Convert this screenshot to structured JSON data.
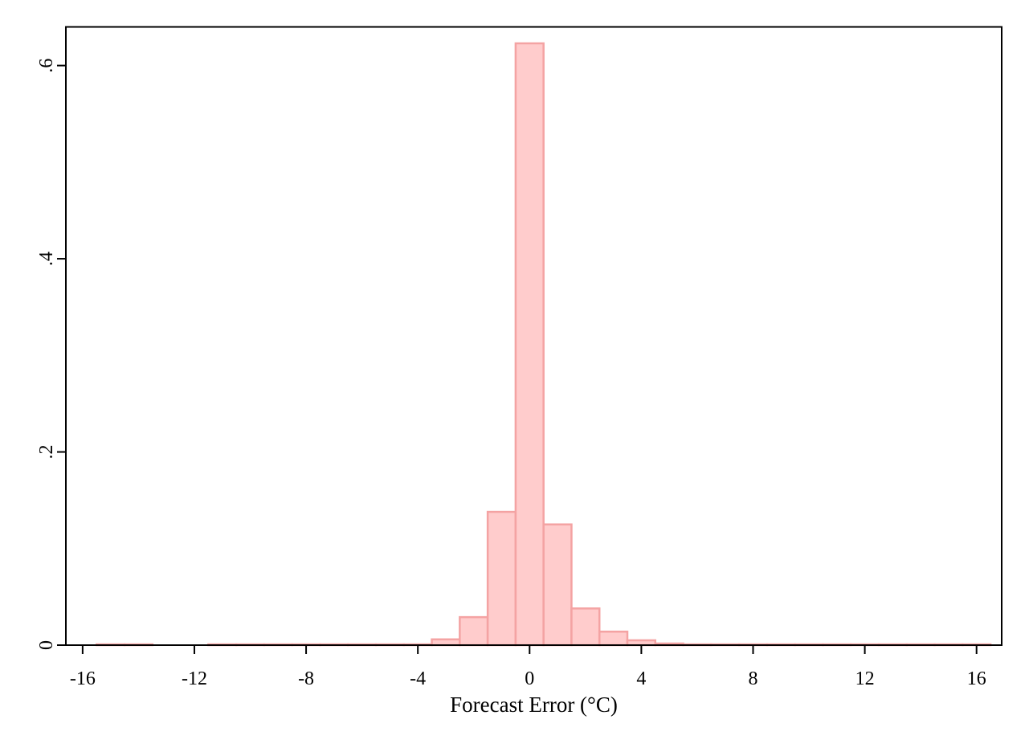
{
  "chart_data": {
    "type": "bar",
    "subtype": "histogram",
    "title": "",
    "xlabel": "Forecast Error (°C)",
    "ylabel": "",
    "xlim": [
      -16.6,
      16.9
    ],
    "ylim": [
      0,
      0.64
    ],
    "x_ticks": [
      {
        "value": -16,
        "label": "-16"
      },
      {
        "value": -12,
        "label": "-12"
      },
      {
        "value": -8,
        "label": "-8"
      },
      {
        "value": -4,
        "label": "-4"
      },
      {
        "value": 0,
        "label": "0"
      },
      {
        "value": 4,
        "label": "4"
      },
      {
        "value": 8,
        "label": "8"
      },
      {
        "value": 12,
        "label": "12"
      },
      {
        "value": 16,
        "label": "16"
      }
    ],
    "y_ticks": [
      {
        "value": 0,
        "label": "0"
      },
      {
        "value": 0.2,
        "label": ".2"
      },
      {
        "value": 0.4,
        "label": ".4"
      },
      {
        "value": 0.6,
        "label": ".6"
      }
    ],
    "bin_width": 1,
    "bins": [
      {
        "x0": -15.5,
        "x1": -14.5,
        "density": 0.0004
      },
      {
        "x0": -14.5,
        "x1": -13.5,
        "density": 0.0004
      },
      {
        "x0": -11.5,
        "x1": -10.5,
        "density": 0.0004
      },
      {
        "x0": -10.5,
        "x1": -9.5,
        "density": 0.0004
      },
      {
        "x0": -9.5,
        "x1": -8.5,
        "density": 0.0004
      },
      {
        "x0": -8.5,
        "x1": -7.5,
        "density": 0.0004
      },
      {
        "x0": -7.5,
        "x1": -6.5,
        "density": 0.0004
      },
      {
        "x0": -6.5,
        "x1": -5.5,
        "density": 0.0004
      },
      {
        "x0": -5.5,
        "x1": -4.5,
        "density": 0.0004
      },
      {
        "x0": -4.5,
        "x1": -3.5,
        "density": 0.0005
      },
      {
        "x0": -3.5,
        "x1": -2.5,
        "density": 0.006
      },
      {
        "x0": -2.5,
        "x1": -1.5,
        "density": 0.029
      },
      {
        "x0": -1.5,
        "x1": -0.5,
        "density": 0.138
      },
      {
        "x0": -0.5,
        "x1": 0.5,
        "density": 0.623
      },
      {
        "x0": 0.5,
        "x1": 1.5,
        "density": 0.125
      },
      {
        "x0": 1.5,
        "x1": 2.5,
        "density": 0.038
      },
      {
        "x0": 2.5,
        "x1": 3.5,
        "density": 0.014
      },
      {
        "x0": 3.5,
        "x1": 4.5,
        "density": 0.005
      },
      {
        "x0": 4.5,
        "x1": 5.5,
        "density": 0.0017
      },
      {
        "x0": 5.5,
        "x1": 6.5,
        "density": 0.0006
      },
      {
        "x0": 6.5,
        "x1": 7.5,
        "density": 0.0004
      },
      {
        "x0": 7.5,
        "x1": 8.5,
        "density": 0.0004
      },
      {
        "x0": 8.5,
        "x1": 9.5,
        "density": 0.0004
      },
      {
        "x0": 9.5,
        "x1": 10.5,
        "density": 0.0004
      },
      {
        "x0": 10.5,
        "x1": 11.5,
        "density": 0.0004
      },
      {
        "x0": 11.5,
        "x1": 12.5,
        "density": 0.0004
      },
      {
        "x0": 12.5,
        "x1": 13.5,
        "density": 0.0004
      },
      {
        "x0": 13.5,
        "x1": 14.5,
        "density": 0.0004
      },
      {
        "x0": 14.5,
        "x1": 15.5,
        "density": 0.0004
      },
      {
        "x0": 15.5,
        "x1": 16.5,
        "density": 0.0004
      }
    ],
    "grid": false,
    "legend": "none",
    "colors": {
      "bar_fill": "#ffcccc",
      "bar_stroke": "#f4a3a3",
      "axis": "#000000",
      "background": "#ffffff"
    }
  }
}
